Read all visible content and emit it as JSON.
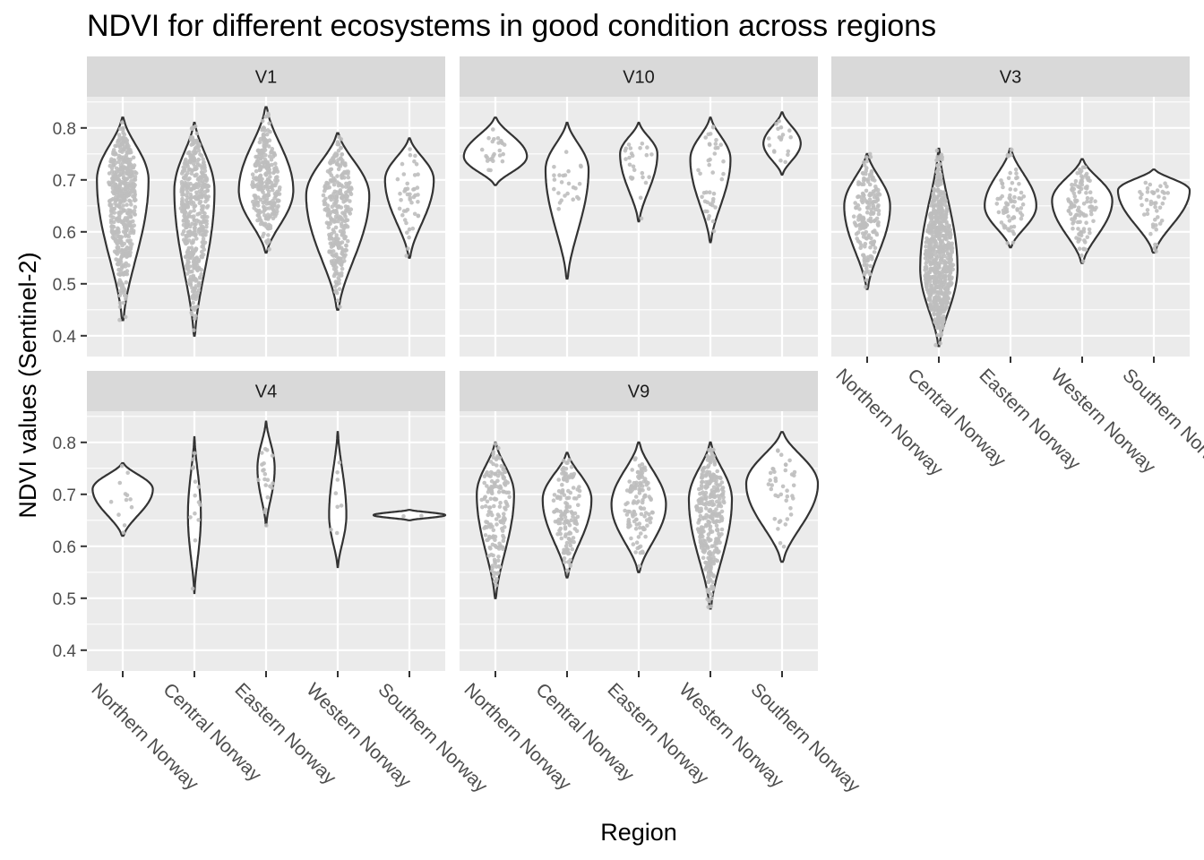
{
  "chart_data": {
    "type": "violin",
    "title": "NDVI for different ecosystems in good condition across regions",
    "xlabel": "Region",
    "ylabel": "NDVI values (Sentinel-2)",
    "ylim": [
      0.36,
      0.86
    ],
    "yticks": [
      0.4,
      0.5,
      0.6,
      0.7,
      0.8
    ],
    "ytick_labels": [
      "0.4",
      "0.5",
      "0.6",
      "0.7",
      "0.8"
    ],
    "categories": [
      "Northern Norway",
      "Central Norway",
      "Eastern Norway",
      "Western Norway",
      "Southern Norway"
    ],
    "grid": true,
    "colors": {
      "panel_bg": "#ebebeb",
      "strip_bg": "#d9d9d9",
      "grid": "#ffffff",
      "violin_stroke": "#333333",
      "violin_fill": "#ffffff",
      "points": "#bebebe",
      "text": "#000000",
      "tick_text": "#4d4d4d"
    },
    "panels": [
      {
        "label": "V1",
        "violins": [
          {
            "category": "Northern Norway",
            "min": 0.43,
            "max": 0.82,
            "mode": 0.7,
            "max_halfwidth": 0.36,
            "n_points": 500
          },
          {
            "category": "Central Norway",
            "min": 0.4,
            "max": 0.81,
            "mode": 0.68,
            "max_halfwidth": 0.28,
            "n_points": 450
          },
          {
            "category": "Eastern Norway",
            "min": 0.56,
            "max": 0.84,
            "mode": 0.68,
            "max_halfwidth": 0.38,
            "n_points": 280
          },
          {
            "category": "Western Norway",
            "min": 0.45,
            "max": 0.79,
            "mode": 0.67,
            "max_halfwidth": 0.44,
            "n_points": 300
          },
          {
            "category": "Southern Norway",
            "min": 0.55,
            "max": 0.78,
            "mode": 0.7,
            "max_halfwidth": 0.34,
            "n_points": 45
          }
        ]
      },
      {
        "label": "V10",
        "violins": [
          {
            "category": "Northern Norway",
            "min": 0.69,
            "max": 0.82,
            "mode": 0.745,
            "max_halfwidth": 0.44,
            "n_points": 25
          },
          {
            "category": "Central Norway",
            "min": 0.51,
            "max": 0.81,
            "mode": 0.72,
            "max_halfwidth": 0.3,
            "n_points": 25
          },
          {
            "category": "Eastern Norway",
            "min": 0.62,
            "max": 0.81,
            "mode": 0.75,
            "max_halfwidth": 0.26,
            "n_points": 25
          },
          {
            "category": "Western Norway",
            "min": 0.58,
            "max": 0.82,
            "mode": 0.74,
            "max_halfwidth": 0.28,
            "n_points": 40
          },
          {
            "category": "Southern Norway",
            "min": 0.71,
            "max": 0.83,
            "mode": 0.77,
            "max_halfwidth": 0.26,
            "n_points": 18
          }
        ]
      },
      {
        "label": "V3",
        "violins": [
          {
            "category": "Northern Norway",
            "min": 0.49,
            "max": 0.75,
            "mode": 0.65,
            "max_halfwidth": 0.32,
            "n_points": 180
          },
          {
            "category": "Central Norway",
            "min": 0.38,
            "max": 0.76,
            "mode": 0.53,
            "max_halfwidth": 0.26,
            "n_points": 700
          },
          {
            "category": "Eastern Norway",
            "min": 0.57,
            "max": 0.76,
            "mode": 0.65,
            "max_halfwidth": 0.36,
            "n_points": 70
          },
          {
            "category": "Western Norway",
            "min": 0.54,
            "max": 0.74,
            "mode": 0.66,
            "max_halfwidth": 0.42,
            "n_points": 110
          },
          {
            "category": "Southern Norway",
            "min": 0.56,
            "max": 0.72,
            "mode": 0.68,
            "max_halfwidth": 0.5,
            "n_points": 45
          }
        ]
      },
      {
        "label": "V4",
        "violins": [
          {
            "category": "Northern Norway",
            "min": 0.62,
            "max": 0.76,
            "mode": 0.71,
            "max_halfwidth": 0.42,
            "n_points": 12
          },
          {
            "category": "Central Norway",
            "min": 0.51,
            "max": 0.81,
            "mode": 0.66,
            "max_halfwidth": 0.09,
            "n_points": 14
          },
          {
            "category": "Eastern Norway",
            "min": 0.64,
            "max": 0.84,
            "mode": 0.75,
            "max_halfwidth": 0.12,
            "n_points": 20
          },
          {
            "category": "Western Norway",
            "min": 0.56,
            "max": 0.82,
            "mode": 0.66,
            "max_halfwidth": 0.12,
            "n_points": 8
          },
          {
            "category": "Southern Norway",
            "min": 0.65,
            "max": 0.67,
            "mode": 0.66,
            "max_halfwidth": 0.5,
            "n_points": 2
          }
        ]
      },
      {
        "label": "V9",
        "violins": [
          {
            "category": "Northern Norway",
            "min": 0.5,
            "max": 0.8,
            "mode": 0.7,
            "max_halfwidth": 0.26,
            "n_points": 160
          },
          {
            "category": "Central Norway",
            "min": 0.54,
            "max": 0.78,
            "mode": 0.69,
            "max_halfwidth": 0.34,
            "n_points": 140
          },
          {
            "category": "Eastern Norway",
            "min": 0.55,
            "max": 0.8,
            "mode": 0.68,
            "max_halfwidth": 0.38,
            "n_points": 120
          },
          {
            "category": "Western Norway",
            "min": 0.48,
            "max": 0.8,
            "mode": 0.69,
            "max_halfwidth": 0.3,
            "n_points": 300
          },
          {
            "category": "Southern Norway",
            "min": 0.57,
            "max": 0.82,
            "mode": 0.72,
            "max_halfwidth": 0.5,
            "n_points": 40
          }
        ]
      }
    ]
  }
}
